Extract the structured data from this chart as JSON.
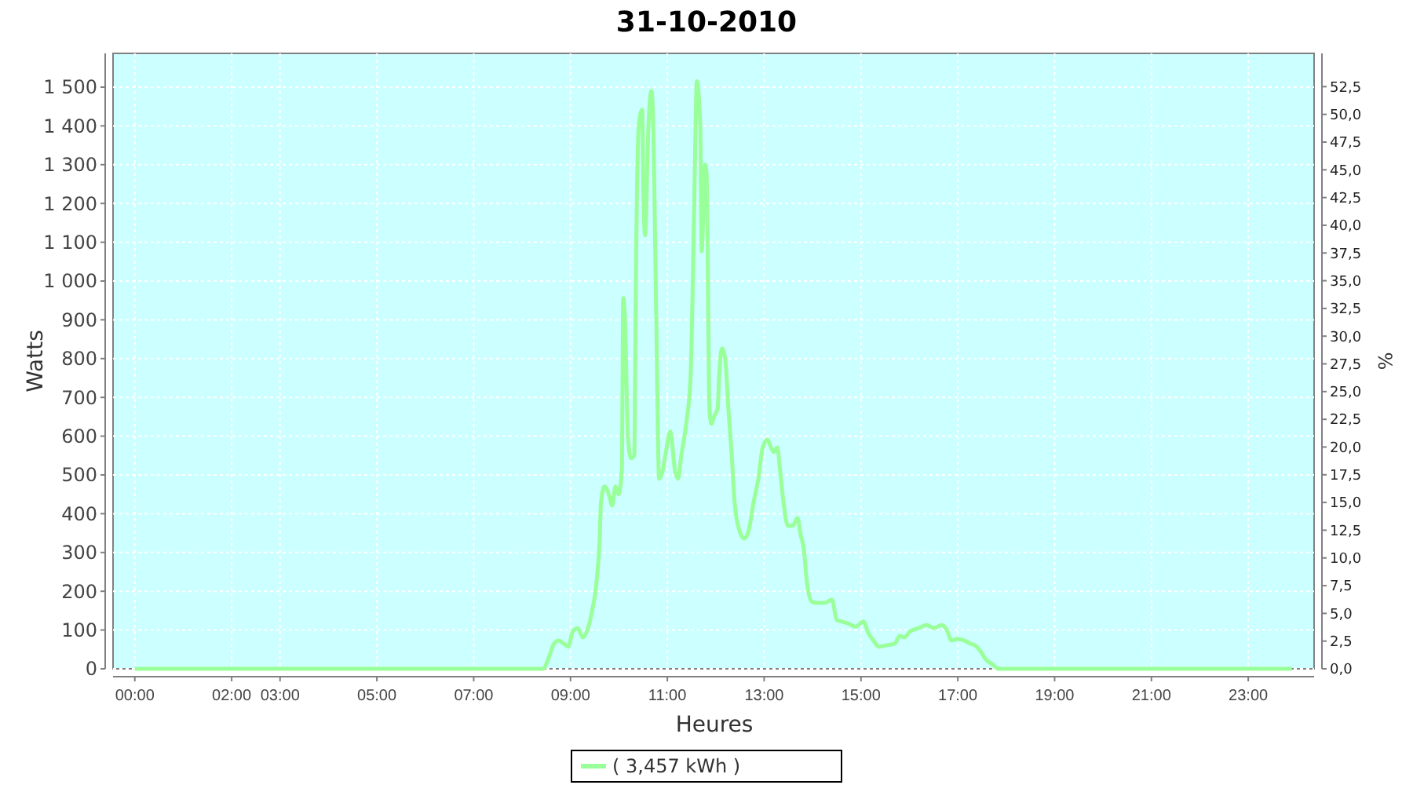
{
  "chart_data": {
    "type": "line",
    "title": "31-10-2010",
    "xlabel": "Heures",
    "ylabel": "Watts",
    "y2label": "%",
    "xlim": [
      -0.45,
      24.36
    ],
    "xticks": [
      {
        "value": 0,
        "label": "00:00"
      },
      {
        "value": 2,
        "label": "02:00"
      },
      {
        "value": 3,
        "label": "03:00"
      },
      {
        "value": 5,
        "label": "05:00"
      },
      {
        "value": 7,
        "label": "07:00"
      },
      {
        "value": 9,
        "label": "09:00"
      },
      {
        "value": 11,
        "label": "11:00"
      },
      {
        "value": 13,
        "label": "13:00"
      },
      {
        "value": 15,
        "label": "15:00"
      },
      {
        "value": 17,
        "label": "17:00"
      },
      {
        "value": 19,
        "label": "19:00"
      },
      {
        "value": 21,
        "label": "21:00"
      },
      {
        "value": 23,
        "label": "23:00"
      }
    ],
    "ylim": [
      0,
      1587
    ],
    "yticks": [
      0,
      100,
      200,
      300,
      400,
      500,
      600,
      700,
      800,
      900,
      {
        "value": 1000,
        "label": "1 000"
      },
      {
        "value": 1100,
        "label": "1 100"
      },
      {
        "value": 1200,
        "label": "1 200"
      },
      {
        "value": 1300,
        "label": "1 300"
      },
      {
        "value": 1400,
        "label": "1 400"
      },
      {
        "value": 1500,
        "label": "1 500"
      }
    ],
    "y2lim": [
      0,
      55.5
    ],
    "y2ticks": [
      {
        "value": 0,
        "label": "0,0"
      },
      {
        "value": 2.5,
        "label": "2,5"
      },
      {
        "value": 5,
        "label": "5,0"
      },
      {
        "value": 7.5,
        "label": "7,5"
      },
      {
        "value": 10,
        "label": "10,0"
      },
      {
        "value": 12.5,
        "label": "12,5"
      },
      {
        "value": 15,
        "label": "15,0"
      },
      {
        "value": 17.5,
        "label": "17,5"
      },
      {
        "value": 20,
        "label": "20,0"
      },
      {
        "value": 22.5,
        "label": "22,5"
      },
      {
        "value": 25,
        "label": "25,0"
      },
      {
        "value": 27.5,
        "label": "27,5"
      },
      {
        "value": 30,
        "label": "30,0"
      },
      {
        "value": 32.5,
        "label": "32,5"
      },
      {
        "value": 35,
        "label": "35,0"
      },
      {
        "value": 37.5,
        "label": "37,5"
      },
      {
        "value": 40,
        "label": "40,0"
      },
      {
        "value": 42.5,
        "label": "42,5"
      },
      {
        "value": 45,
        "label": "45,0"
      },
      {
        "value": 47.5,
        "label": "47,5"
      },
      {
        "value": 50,
        "label": "50,0"
      },
      {
        "value": 52.5,
        "label": "52,5"
      }
    ],
    "grid": true,
    "legend": "bottom",
    "line_style": "solid",
    "marker": "none",
    "series": [
      {
        "name": "( 3,457 kWh )",
        "color": "#99ff99",
        "x": [
          0,
          8.43,
          8.56,
          8.66,
          8.76,
          8.86,
          8.95,
          9.05,
          9.15,
          9.25,
          9.34,
          9.44,
          9.54,
          9.6,
          9.63,
          9.7,
          9.8,
          9.86,
          9.93,
          9.99,
          10.06,
          10.09,
          10.12,
          10.19,
          10.25,
          10.32,
          10.35,
          10.41,
          10.48,
          10.51,
          10.54,
          10.61,
          10.67,
          10.7,
          10.77,
          10.83,
          10.9,
          10.96,
          11.06,
          11.16,
          11.22,
          11.29,
          11.39,
          11.48,
          11.55,
          11.61,
          11.68,
          11.71,
          11.78,
          11.81,
          11.87,
          11.91,
          11.97,
          12.04,
          12.07,
          12.13,
          12.2,
          12.26,
          12.33,
          12.39,
          12.49,
          12.59,
          12.68,
          12.78,
          12.88,
          12.97,
          13.07,
          13.14,
          13.2,
          13.27,
          13.33,
          13.4,
          13.49,
          13.59,
          13.69,
          13.75,
          13.82,
          13.88,
          13.98,
          14.08,
          14.24,
          14.4,
          14.5,
          14.6,
          14.73,
          14.89,
          15.05,
          15.15,
          15.28,
          15.37,
          15.54,
          15.7,
          15.8,
          15.89,
          16.02,
          16.19,
          16.35,
          16.51,
          16.67,
          16.77,
          16.87,
          17,
          17.13,
          17.26,
          17.35,
          17.45,
          17.58,
          17.71,
          17.84,
          23.9
        ],
        "values": [
          0,
          0,
          32,
          65,
          73,
          65,
          57,
          97,
          105,
          81,
          97,
          146,
          227,
          328,
          429,
          470,
          446,
          421,
          470,
          450,
          510,
          956,
          915,
          591,
          543,
          551,
          996,
          1401,
          1442,
          1199,
          1118,
          1401,
          1490,
          1442,
          915,
          490,
          510,
          551,
          612,
          510,
          490,
          551,
          632,
          753,
          1158,
          1515,
          1401,
          1077,
          1300,
          1280,
          672,
          632,
          652,
          672,
          753,
          826,
          794,
          672,
          551,
          429,
          356,
          336,
          356,
          429,
          490,
          571,
          591,
          571,
          559,
          571,
          510,
          429,
          369,
          369,
          389,
          348,
          308,
          227,
          174,
          170,
          170,
          178,
          126,
          122,
          117,
          109,
          122,
          93,
          69,
          57,
          61,
          65,
          85,
          81,
          97,
          105,
          113,
          105,
          113,
          101,
          73,
          77,
          73,
          65,
          61,
          49,
          24,
          12,
          0,
          0
        ]
      }
    ]
  }
}
